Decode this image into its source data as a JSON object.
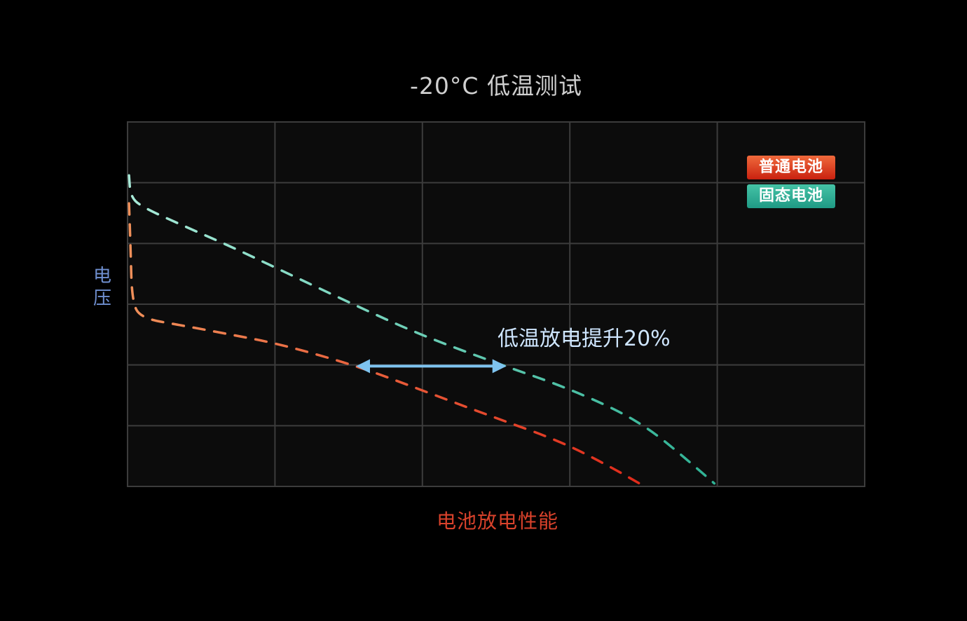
{
  "chart_data": {
    "type": "line",
    "title": "-20°C 低温测试",
    "xlabel": "电池放电性能",
    "ylabel": "电压",
    "xlim": [
      0,
      5
    ],
    "ylim": [
      0,
      6
    ],
    "grid": true,
    "legend_position": "top-right",
    "series": [
      {
        "name": "普通电池",
        "color": "#e8412a",
        "style": "dashed",
        "x": [
          0.01,
          0.02,
          0.03,
          0.09,
          0.37,
          0.7,
          1.04,
          1.56,
          1.99,
          2.46,
          2.94,
          3.27,
          3.5
        ],
        "y": [
          4.66,
          3.97,
          3.05,
          2.77,
          2.65,
          2.5,
          2.34,
          1.98,
          1.59,
          1.16,
          0.74,
          0.33,
          0.01
        ]
      },
      {
        "name": "固态电池",
        "color": "#3fc0a0",
        "style": "dashed",
        "x": [
          0.01,
          0.02,
          0.09,
          0.37,
          0.7,
          1.04,
          1.51,
          1.99,
          2.56,
          2.94,
          3.32,
          3.56,
          3.79,
          3.98
        ],
        "y": [
          5.12,
          4.78,
          4.61,
          4.3,
          3.95,
          3.56,
          3.02,
          2.49,
          1.98,
          1.66,
          1.26,
          0.91,
          0.45,
          0.05
        ]
      }
    ],
    "annotation": {
      "text": "低温放电提升20%",
      "arrow_from_x": 1.55,
      "arrow_to_x": 2.57,
      "arrow_y": 1.98,
      "color": "#7ec3ef"
    }
  }
}
